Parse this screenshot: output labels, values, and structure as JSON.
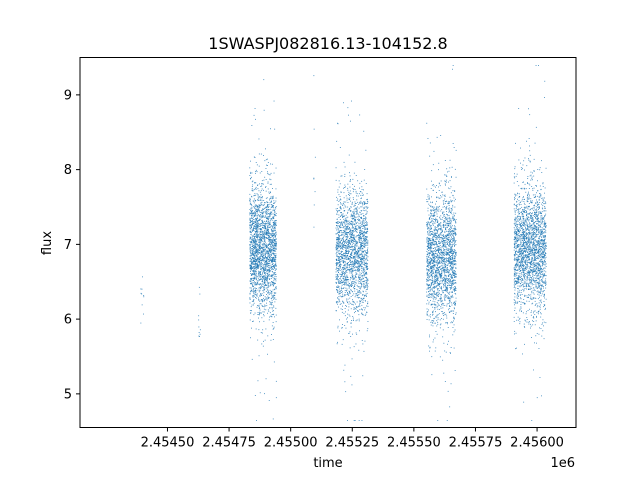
{
  "chart_data": {
    "type": "scatter",
    "title": "1SWASPJ082816.13-104152.8",
    "xlabel": "time",
    "ylabel": "flux",
    "x_offset_label": "1e6",
    "x_ticks": [
      2454500,
      2454750,
      2455000,
      2455250,
      2455500,
      2455750,
      2456000
    ],
    "x_tick_labels": [
      "2.45450",
      "2.45475",
      "2.45500",
      "2.45525",
      "2.45550",
      "2.45575",
      "2.45600"
    ],
    "y_ticks": [
      5,
      6,
      7,
      8,
      9
    ],
    "y_tick_labels": [
      "5",
      "6",
      "7",
      "8",
      "9"
    ],
    "xlim": [
      2454145,
      2456158
    ],
    "ylim": [
      4.55,
      9.5
    ],
    "grid": false,
    "color": "#1f77b4",
    "series": [
      {
        "marker": "point",
        "clusters": [
          {
            "x_start": 2454390,
            "x_end": 2454402,
            "y_center": 6.45,
            "y_spread": 0.18,
            "count": 10
          },
          {
            "x_start": 2454620,
            "x_end": 2454632,
            "y_center": 6.0,
            "y_spread": 0.25,
            "count": 10
          },
          {
            "x_start": 2454832,
            "x_end": 2454940,
            "y_center": 6.95,
            "y_spread": 0.42,
            "count": 2200
          },
          {
            "x_start": 2455092,
            "x_end": 2455100,
            "y_center": 8.1,
            "y_spread": 0.6,
            "count": 8
          },
          {
            "x_start": 2455182,
            "x_end": 2455312,
            "y_center": 6.9,
            "y_spread": 0.42,
            "count": 2000
          },
          {
            "x_start": 2455550,
            "x_end": 2455670,
            "y_center": 6.85,
            "y_spread": 0.42,
            "count": 2000
          },
          {
            "x_start": 2455905,
            "x_end": 2456035,
            "y_center": 6.95,
            "y_spread": 0.42,
            "count": 2200
          }
        ]
      }
    ]
  }
}
